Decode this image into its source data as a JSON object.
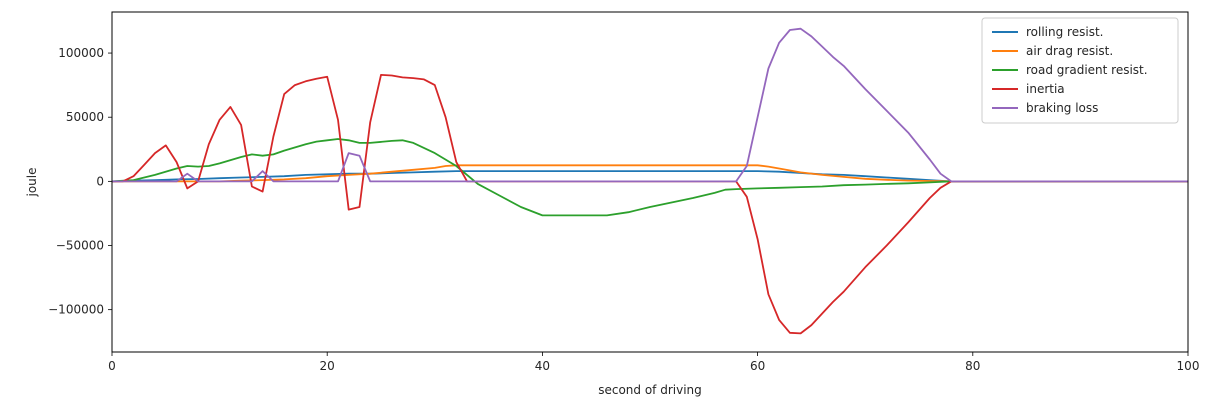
{
  "chart_data": {
    "type": "line",
    "xlabel": "second of driving",
    "ylabel": "joule",
    "xlim": [
      0,
      100
    ],
    "ylim": [
      -133000,
      132000
    ],
    "xticks": [
      0,
      20,
      40,
      60,
      80,
      100
    ],
    "yticks": [
      -100000,
      -50000,
      0,
      50000,
      100000
    ],
    "ytick_labels": [
      "−100000",
      "−50000",
      "0",
      "50000",
      "100000"
    ],
    "grid": false,
    "legend_position": "top-right",
    "series": [
      {
        "name": "rolling resist.",
        "color": "#1f77b4",
        "points": [
          [
            0,
            0
          ],
          [
            2,
            500
          ],
          [
            4,
            1000
          ],
          [
            6,
            1500
          ],
          [
            8,
            1800
          ],
          [
            10,
            2500
          ],
          [
            12,
            3000
          ],
          [
            14,
            3500
          ],
          [
            16,
            4000
          ],
          [
            18,
            5000
          ],
          [
            20,
            5500
          ],
          [
            22,
            6000
          ],
          [
            24,
            6000
          ],
          [
            26,
            6500
          ],
          [
            28,
            7000
          ],
          [
            30,
            7500
          ],
          [
            32,
            8000
          ],
          [
            34,
            8000
          ],
          [
            40,
            8000
          ],
          [
            50,
            8000
          ],
          [
            58,
            8000
          ],
          [
            60,
            8000
          ],
          [
            62,
            7500
          ],
          [
            64,
            6500
          ],
          [
            66,
            5500
          ],
          [
            68,
            5000
          ],
          [
            70,
            4000
          ],
          [
            72,
            3000
          ],
          [
            74,
            2000
          ],
          [
            76,
            1000
          ],
          [
            78,
            0
          ],
          [
            80,
            0
          ],
          [
            100,
            0
          ]
        ]
      },
      {
        "name": "air drag resist.",
        "color": "#ff7f0e",
        "points": [
          [
            0,
            0
          ],
          [
            10,
            0
          ],
          [
            12,
            500
          ],
          [
            14,
            1000
          ],
          [
            16,
            1500
          ],
          [
            18,
            2500
          ],
          [
            20,
            4000
          ],
          [
            22,
            5000
          ],
          [
            24,
            6000
          ],
          [
            26,
            7500
          ],
          [
            28,
            9000
          ],
          [
            30,
            10500
          ],
          [
            31,
            12000
          ],
          [
            32,
            12500
          ],
          [
            40,
            12500
          ],
          [
            50,
            12500
          ],
          [
            58,
            12500
          ],
          [
            60,
            12500
          ],
          [
            61,
            11500
          ],
          [
            62,
            10000
          ],
          [
            64,
            7000
          ],
          [
            66,
            5000
          ],
          [
            68,
            3500
          ],
          [
            70,
            2000
          ],
          [
            72,
            1200
          ],
          [
            74,
            600
          ],
          [
            76,
            300
          ],
          [
            78,
            0
          ],
          [
            80,
            0
          ],
          [
            100,
            0
          ]
        ]
      },
      {
        "name": "road gradient resist.",
        "color": "#2ca02c",
        "points": [
          [
            0,
            0
          ],
          [
            2,
            1000
          ],
          [
            4,
            5000
          ],
          [
            6,
            10000
          ],
          [
            7,
            12000
          ],
          [
            8,
            11500
          ],
          [
            9,
            12000
          ],
          [
            10,
            14000
          ],
          [
            12,
            19000
          ],
          [
            13,
            21000
          ],
          [
            14,
            20000
          ],
          [
            15,
            21000
          ],
          [
            16,
            24000
          ],
          [
            18,
            29000
          ],
          [
            19,
            31000
          ],
          [
            20,
            32000
          ],
          [
            21,
            33000
          ],
          [
            22,
            32000
          ],
          [
            23,
            30000
          ],
          [
            24,
            30000
          ],
          [
            26,
            31500
          ],
          [
            27,
            32000
          ],
          [
            28,
            30000
          ],
          [
            30,
            22000
          ],
          [
            32,
            12000
          ],
          [
            34,
            -2000
          ],
          [
            36,
            -11000
          ],
          [
            38,
            -20000
          ],
          [
            40,
            -26500
          ],
          [
            42,
            -26500
          ],
          [
            44,
            -26500
          ],
          [
            46,
            -26500
          ],
          [
            48,
            -24000
          ],
          [
            50,
            -20000
          ],
          [
            52,
            -16500
          ],
          [
            54,
            -13000
          ],
          [
            56,
            -9000
          ],
          [
            57,
            -6500
          ],
          [
            58,
            -6000
          ],
          [
            60,
            -5500
          ],
          [
            62,
            -5000
          ],
          [
            64,
            -4500
          ],
          [
            66,
            -4000
          ],
          [
            68,
            -3000
          ],
          [
            70,
            -2500
          ],
          [
            72,
            -2000
          ],
          [
            74,
            -1500
          ],
          [
            76,
            -800
          ],
          [
            78,
            0
          ],
          [
            80,
            0
          ],
          [
            100,
            0
          ]
        ]
      },
      {
        "name": "inertia",
        "color": "#d62728",
        "points": [
          [
            0,
            0
          ],
          [
            1,
            0
          ],
          [
            2,
            4000
          ],
          [
            3,
            13000
          ],
          [
            4,
            22000
          ],
          [
            5,
            28000
          ],
          [
            6,
            15000
          ],
          [
            7,
            -5500
          ],
          [
            8,
            0
          ],
          [
            9,
            29000
          ],
          [
            10,
            48000
          ],
          [
            11,
            58000
          ],
          [
            12,
            44000
          ],
          [
            13,
            -4000
          ],
          [
            14,
            -8000
          ],
          [
            15,
            35000
          ],
          [
            16,
            68000
          ],
          [
            17,
            75000
          ],
          [
            18,
            78000
          ],
          [
            19,
            80000
          ],
          [
            20,
            81500
          ],
          [
            21,
            48000
          ],
          [
            22,
            -22000
          ],
          [
            23,
            -20000
          ],
          [
            24,
            46000
          ],
          [
            25,
            83000
          ],
          [
            26,
            82500
          ],
          [
            27,
            81000
          ],
          [
            28,
            80500
          ],
          [
            29,
            79500
          ],
          [
            30,
            75000
          ],
          [
            31,
            50000
          ],
          [
            32,
            15000
          ],
          [
            33,
            0
          ],
          [
            40,
            0
          ],
          [
            50,
            0
          ],
          [
            57,
            0
          ],
          [
            58,
            0
          ],
          [
            59,
            -12000
          ],
          [
            60,
            -45000
          ],
          [
            61,
            -88000
          ],
          [
            62,
            -108000
          ],
          [
            63,
            -118000
          ],
          [
            64,
            -118500
          ],
          [
            65,
            -112000
          ],
          [
            66,
            -103000
          ],
          [
            67,
            -94000
          ],
          [
            68,
            -86000
          ],
          [
            70,
            -67000
          ],
          [
            72,
            -50000
          ],
          [
            74,
            -32000
          ],
          [
            76,
            -13000
          ],
          [
            77,
            -5000
          ],
          [
            78,
            0
          ],
          [
            80,
            0
          ],
          [
            100,
            0
          ]
        ]
      },
      {
        "name": "braking loss",
        "color": "#9467bd",
        "points": [
          [
            0,
            0
          ],
          [
            6,
            0
          ],
          [
            7,
            6000
          ],
          [
            8,
            0
          ],
          [
            13,
            0
          ],
          [
            14,
            8000
          ],
          [
            15,
            0
          ],
          [
            21,
            0
          ],
          [
            22,
            22000
          ],
          [
            23,
            20000
          ],
          [
            24,
            0
          ],
          [
            30,
            0
          ],
          [
            40,
            0
          ],
          [
            50,
            0
          ],
          [
            58,
            0
          ],
          [
            59,
            12000
          ],
          [
            60,
            50000
          ],
          [
            61,
            88000
          ],
          [
            62,
            108000
          ],
          [
            63,
            118000
          ],
          [
            64,
            119000
          ],
          [
            65,
            113000
          ],
          [
            66,
            105000
          ],
          [
            67,
            97000
          ],
          [
            68,
            90000
          ],
          [
            70,
            72000
          ],
          [
            72,
            55000
          ],
          [
            74,
            38000
          ],
          [
            76,
            17000
          ],
          [
            77,
            6000
          ],
          [
            78,
            0
          ],
          [
            80,
            0
          ],
          [
            100,
            0
          ]
        ]
      }
    ]
  }
}
